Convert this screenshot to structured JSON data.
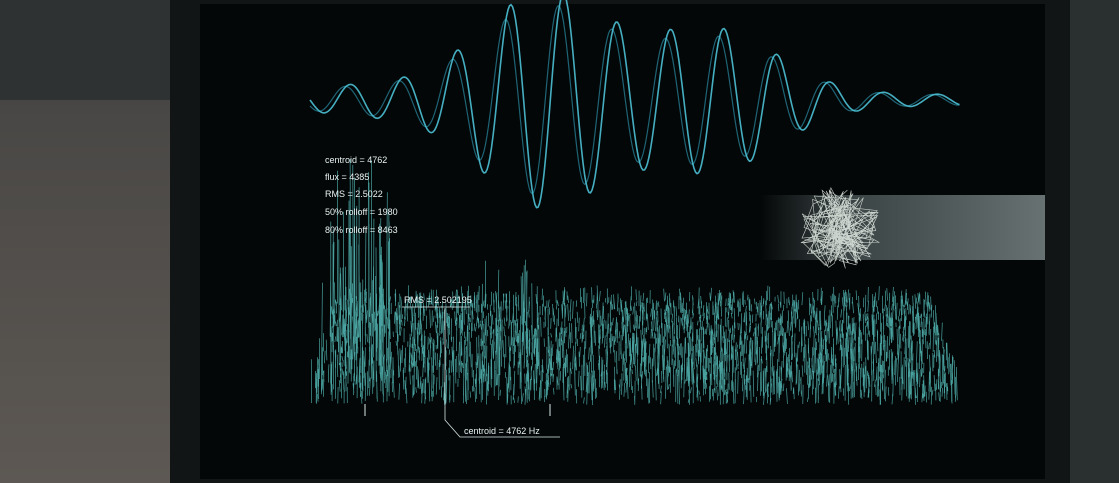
{
  "stats": [
    "centroid = 4762",
    "flux = 4385",
    "RMS = 2.5022",
    "50% rolloff = 1980",
    "80% rolloff = 8463"
  ],
  "labels": {
    "rms": "RMS = 2.502195",
    "centroid": "centroid = 4762 Hz"
  }
}
